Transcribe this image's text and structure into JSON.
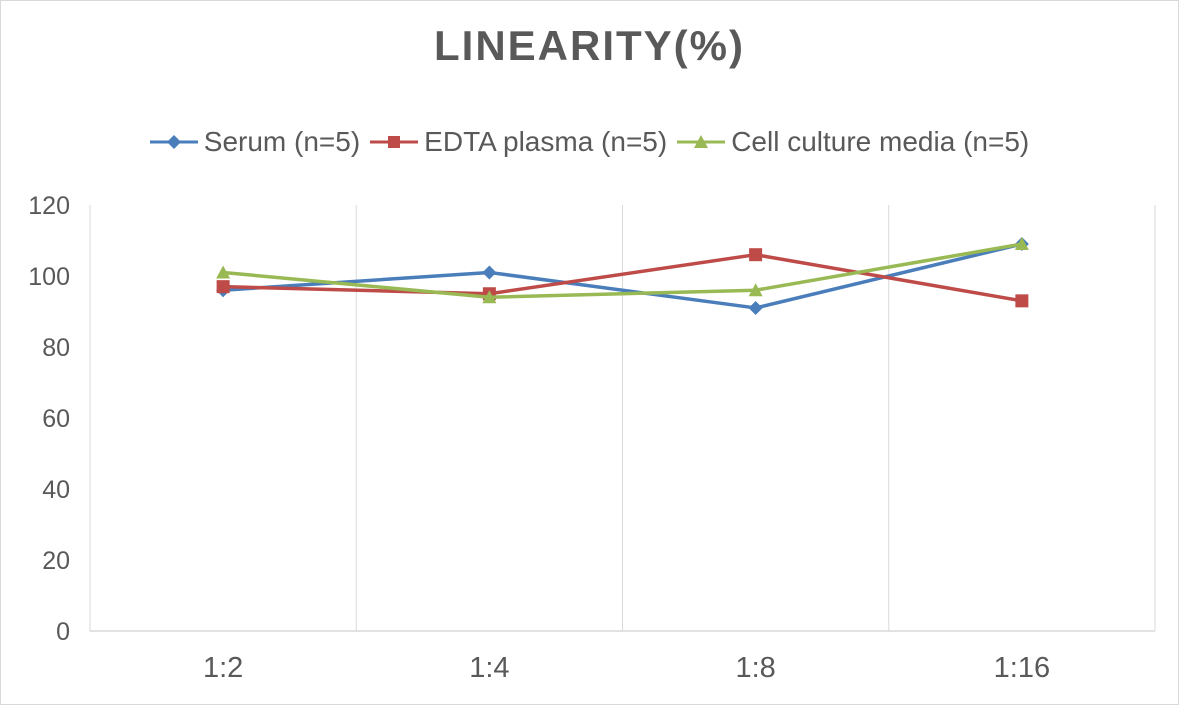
{
  "chart_data": {
    "type": "line",
    "title": "LINEARITY(%)",
    "xlabel": "",
    "ylabel": "",
    "categories": [
      "1:2",
      "1:4",
      "1:8",
      "1:16"
    ],
    "ylim": [
      0,
      120
    ],
    "yticks": [
      0,
      20,
      40,
      60,
      80,
      100,
      120
    ],
    "grid": "vertical",
    "legend_position": "top",
    "series": [
      {
        "name": "Serum (n=5)",
        "values": [
          96,
          101,
          91,
          109
        ],
        "color": "#4a7ebb",
        "marker": "diamond"
      },
      {
        "name": "EDTA plasma (n=5)",
        "values": [
          97,
          95,
          106,
          93
        ],
        "color": "#be4b48",
        "marker": "square"
      },
      {
        "name": "Cell culture media (n=5)",
        "values": [
          101,
          94,
          96,
          109
        ],
        "color": "#98b954",
        "marker": "triangle"
      }
    ]
  }
}
